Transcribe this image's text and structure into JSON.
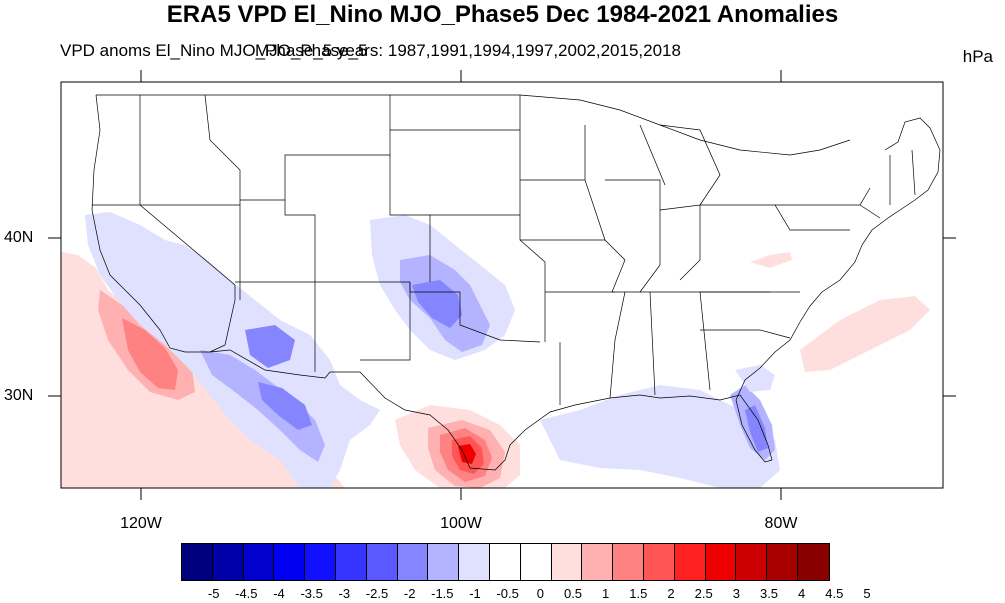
{
  "title": "ERA5 VPD El_Nino MJO_Phase5 Dec 1984-2021 Anomalies",
  "subtitle": "VPD anoms El_Nino MJO_Phase_5 years: 1987,1991,1994,1997,2002,2015,2018",
  "overlap_text": "MJO_Phase_5",
  "units": "hPa",
  "lat_labels": [
    "40N",
    "30N"
  ],
  "lon_labels": [
    "120W",
    "100W",
    "80W"
  ],
  "colorbar": {
    "ticks": [
      "-5",
      "-4.5",
      "-4",
      "-3.5",
      "-3",
      "-2.5",
      "-2",
      "-1.5",
      "-1",
      "-0.5",
      "0",
      "0.5",
      "1",
      "1.5",
      "2",
      "2.5",
      "3",
      "3.5",
      "4",
      "4.5",
      "5"
    ],
    "colors": [
      "#00007f",
      "#0000a8",
      "#0000cf",
      "#0000f0",
      "#1111ff",
      "#3535ff",
      "#5959ff",
      "#8585ff",
      "#b3b3ff",
      "#e0e0ff",
      "#ffffff",
      "#ffffff",
      "#ffdede",
      "#ffb0b0",
      "#ff8282",
      "#ff5555",
      "#ff2020",
      "#ee0000",
      "#cc0000",
      "#a80000",
      "#880000"
    ]
  },
  "colors": {
    "land": "#ffffff",
    "ocean_pos_light": "#ffdede",
    "ocean_pos_med": "#ffb0b0",
    "ocean_pos_strong": "#ff8282",
    "neg_light": "#e0e0ff",
    "neg_med": "#b3b3ff",
    "neg_strong": "#8585ff",
    "hot_core": "#ee0000"
  }
}
